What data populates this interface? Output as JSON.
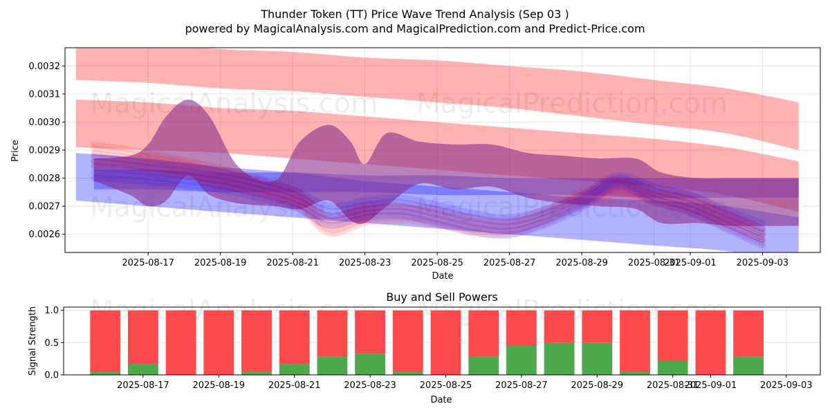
{
  "figure": {
    "title_line1": "Thunder Token (TT) Price Wave Trend Analysis (Sep 03 )",
    "title_line2": "powered by MagicalAnalysis.com and MagicalPrediction.com and Predict-Price.com",
    "watermarks": [
      "MagicalAnalysis.com",
      "MagicalPrediction.com"
    ]
  },
  "chart_data": [
    {
      "type": "area",
      "title": "",
      "xlabel": "Date",
      "ylabel": "Price",
      "ylim": [
        0.002535,
        0.003265
      ],
      "xlim": [
        -1.3,
        19.6
      ],
      "x_ticks": [
        {
          "day": 1,
          "label": "2025-08-17"
        },
        {
          "day": 3,
          "label": "2025-08-19"
        },
        {
          "day": 5,
          "label": "2025-08-21"
        },
        {
          "day": 7,
          "label": "2025-08-23"
        },
        {
          "day": 9,
          "label": "2025-08-25"
        },
        {
          "day": 11,
          "label": "2025-08-27"
        },
        {
          "day": 13,
          "label": "2025-08-29"
        },
        {
          "day": 15,
          "label": "2025-08-31"
        },
        {
          "day": 16,
          "label": "2025-09-01"
        },
        {
          "day": 18,
          "label": "2025-09-03"
        }
      ],
      "y_ticks": [
        "0.0026",
        "0.0027",
        "0.0028",
        "0.0029",
        "0.0030",
        "0.0031",
        "0.0032"
      ],
      "y_tick_values": [
        0.0026,
        0.0027,
        0.0028,
        0.0029,
        0.003,
        0.0031,
        0.0032
      ],
      "colors": {
        "red": "#ff0000",
        "blue": "#0000ff",
        "purple": "#8b2f8b"
      },
      "bands": [
        {
          "name": "red-top-channel",
          "color": "red",
          "opacity": 0.3,
          "x": [
            -1,
            1,
            3,
            5,
            7,
            9,
            11,
            13,
            15,
            17,
            19
          ],
          "upper": [
            0.00328,
            0.00328,
            0.00326,
            0.00325,
            0.00323,
            0.00322,
            0.0032,
            0.00318,
            0.00315,
            0.00312,
            0.00307
          ],
          "lower": [
            0.00315,
            0.00314,
            0.00312,
            0.00311,
            0.00309,
            0.00307,
            0.00305,
            0.00302,
            0.00299,
            0.00296,
            0.0029
          ]
        },
        {
          "name": "red-mid-channel",
          "color": "red",
          "opacity": 0.3,
          "x": [
            -1,
            1,
            3,
            5,
            7,
            9,
            11,
            13,
            15,
            17,
            19
          ],
          "upper": [
            0.00308,
            0.00307,
            0.00305,
            0.00304,
            0.00302,
            0.003,
            0.00298,
            0.00296,
            0.00294,
            0.00291,
            0.00286
          ],
          "lower": [
            0.00291,
            0.0029,
            0.00289,
            0.00287,
            0.00285,
            0.00283,
            0.00281,
            0.00279,
            0.00277,
            0.00274,
            0.00268
          ]
        },
        {
          "name": "blue-lower-channel",
          "color": "blue",
          "opacity": 0.3,
          "x": [
            -1,
            1,
            3,
            5,
            7,
            9,
            11,
            13,
            15,
            17,
            19
          ],
          "upper": [
            0.00289,
            0.00287,
            0.00284,
            0.00282,
            0.00279,
            0.00277,
            0.00275,
            0.00273,
            0.00272,
            0.0027,
            0.00266
          ],
          "lower": [
            0.00272,
            0.0027,
            0.00268,
            0.00266,
            0.00264,
            0.00262,
            0.0026,
            0.00258,
            0.00256,
            0.00254,
            0.0025
          ]
        },
        {
          "name": "blue-flat-channel",
          "color": "blue",
          "opacity": 0.3,
          "x": [
            -0.5,
            1,
            3,
            5,
            7,
            9,
            11,
            13,
            15,
            17,
            19
          ],
          "upper": [
            0.00283,
            0.00283,
            0.00282,
            0.00282,
            0.00281,
            0.00281,
            0.0028,
            0.0028,
            0.0028,
            0.0028,
            0.0028
          ],
          "lower": [
            0.00276,
            0.00276,
            0.00275,
            0.00275,
            0.00275,
            0.00274,
            0.00274,
            0.00274,
            0.00273,
            0.00273,
            0.00273
          ]
        },
        {
          "name": "purple-wave",
          "color": "purple",
          "opacity": 0.6,
          "x": [
            -0.5,
            0.5,
            1,
            1.5,
            2.1,
            2.7,
            3.5,
            4.5,
            5.2,
            6,
            6.6,
            7,
            7.6,
            8.5,
            9.5,
            10.5,
            11.5,
            12.5,
            13.5,
            14.5,
            15.2,
            16.2,
            17.2,
            19
          ],
          "upper": [
            0.00287,
            0.00288,
            0.00292,
            0.00302,
            0.00308,
            0.00302,
            0.00284,
            0.00279,
            0.00293,
            0.00299,
            0.00293,
            0.00285,
            0.00296,
            0.00293,
            0.00292,
            0.00292,
            0.00289,
            0.00288,
            0.00287,
            0.00287,
            0.00282,
            0.0028,
            0.0028,
            0.0028
          ],
          "lower": [
            0.00279,
            0.00274,
            0.0027,
            0.00272,
            0.00281,
            0.00274,
            0.00271,
            0.0027,
            0.00269,
            0.00272,
            0.00265,
            0.00264,
            0.0027,
            0.00278,
            0.00276,
            0.00277,
            0.00273,
            0.00271,
            0.0027,
            0.00269,
            0.00264,
            0.00264,
            0.00263,
            0.00263
          ]
        }
      ],
      "wave_lines": {
        "x": [
          -0.5,
          1,
          3,
          5,
          6,
          7,
          8,
          9,
          10,
          11,
          12,
          13,
          14,
          15,
          16,
          17,
          18
        ],
        "red": [
          [
            0.00292,
            0.00289,
            0.002835,
            0.00276,
            0.002665,
            0.0027,
            0.002705,
            0.00269,
            0.00266,
            0.00265,
            0.00269,
            0.00275,
            0.002795,
            0.00276,
            0.00274,
            0.00268,
            0.00262
          ],
          [
            0.002905,
            0.002878,
            0.002822,
            0.002748,
            0.002652,
            0.002688,
            0.002693,
            0.002678,
            0.002648,
            0.00264,
            0.00268,
            0.00274,
            0.002785,
            0.00275,
            0.002728,
            0.002668,
            0.00261
          ],
          [
            0.00289,
            0.002866,
            0.00281,
            0.002737,
            0.00264,
            0.002676,
            0.002682,
            0.002667,
            0.002637,
            0.00263,
            0.00267,
            0.00273,
            0.002775,
            0.002741,
            0.002716,
            0.002657,
            0.0026
          ],
          [
            0.002875,
            0.002854,
            0.002798,
            0.002726,
            0.002628,
            0.002664,
            0.002671,
            0.002656,
            0.002626,
            0.00262,
            0.00266,
            0.00272,
            0.002765,
            0.002732,
            0.002704,
            0.002646,
            0.00259
          ],
          [
            0.00286,
            0.002842,
            0.002786,
            0.002715,
            0.002616,
            0.002652,
            0.00266,
            0.002645,
            0.002615,
            0.00261,
            0.00265,
            0.00271,
            0.002755,
            0.002723,
            0.002692,
            0.002635,
            0.00258
          ],
          [
            0.002845,
            0.00283,
            0.002774,
            0.002704,
            0.002604,
            0.00264,
            0.002649,
            0.002634,
            0.002604,
            0.0026,
            0.00264,
            0.0027,
            0.002745,
            0.002714,
            0.00268,
            0.002624,
            0.00257
          ]
        ],
        "blue": [
          [
            0.00288,
            0.002855,
            0.002825,
            0.00276,
            0.0027,
            0.00272,
            0.00273,
            0.002705,
            0.002675,
            0.00266,
            0.00269,
            0.00274,
            0.00281,
            0.00277,
            0.00274,
            0.00269,
            0.00264
          ],
          [
            0.00286,
            0.002838,
            0.002808,
            0.002744,
            0.002683,
            0.002705,
            0.002714,
            0.002688,
            0.002658,
            0.002644,
            0.002676,
            0.002728,
            0.0028,
            0.002756,
            0.002724,
            0.002672,
            0.00262
          ],
          [
            0.00284,
            0.002821,
            0.002791,
            0.002728,
            0.002666,
            0.00269,
            0.002698,
            0.002671,
            0.002641,
            0.002628,
            0.002662,
            0.002716,
            0.00279,
            0.002742,
            0.002708,
            0.002654,
            0.0026
          ],
          [
            0.00282,
            0.002804,
            0.002774,
            0.002712,
            0.002649,
            0.002675,
            0.002682,
            0.002654,
            0.002624,
            0.002612,
            0.002648,
            0.002704,
            0.00278,
            0.002728,
            0.002692,
            0.002636,
            0.00258
          ],
          [
            0.0028,
            0.002787,
            0.002757,
            0.002696,
            0.002632,
            0.00266,
            0.002666,
            0.002637,
            0.002607,
            0.002596,
            0.002634,
            0.002692,
            0.00277,
            0.002714,
            0.002676,
            0.002618,
            0.00256
          ]
        ]
      }
    },
    {
      "type": "bar",
      "title": "Buy and Sell Powers",
      "xlabel": "Date",
      "ylabel": "Signal Strength",
      "ylim": [
        0,
        1.05
      ],
      "xlim": [
        -1.1,
        18.9
      ],
      "y_ticks": [
        "0.0",
        "0.5",
        "1.0"
      ],
      "y_tick_values": [
        0,
        0.5,
        1.0
      ],
      "x_ticks": [
        {
          "day": 1,
          "label": "2025-08-17"
        },
        {
          "day": 3,
          "label": "2025-08-19"
        },
        {
          "day": 5,
          "label": "2025-08-21"
        },
        {
          "day": 7,
          "label": "2025-08-23"
        },
        {
          "day": 9,
          "label": "2025-08-25"
        },
        {
          "day": 11,
          "label": "2025-08-27"
        },
        {
          "day": 13,
          "label": "2025-08-29"
        },
        {
          "day": 15,
          "label": "2025-08-31"
        },
        {
          "day": 16,
          "label": "2025-09-01"
        },
        {
          "day": 18,
          "label": "2025-09-03"
        }
      ],
      "colors": {
        "buy": "#4caa4c",
        "sell": "#ff4b4b"
      },
      "series": [
        {
          "name": "Buy",
          "values": [
            0.05,
            0.17,
            0.0,
            0.0,
            0.05,
            0.17,
            0.28,
            0.33,
            0.05,
            0.0,
            0.28,
            0.45,
            0.5,
            0.5,
            0.05,
            0.22,
            0.0,
            0.28
          ]
        },
        {
          "name": "Sell",
          "values": [
            0.95,
            0.83,
            1.0,
            1.0,
            0.95,
            0.83,
            0.72,
            0.67,
            0.95,
            1.0,
            0.72,
            0.55,
            0.5,
            0.5,
            0.95,
            0.78,
            1.0,
            0.72
          ]
        }
      ]
    }
  ]
}
